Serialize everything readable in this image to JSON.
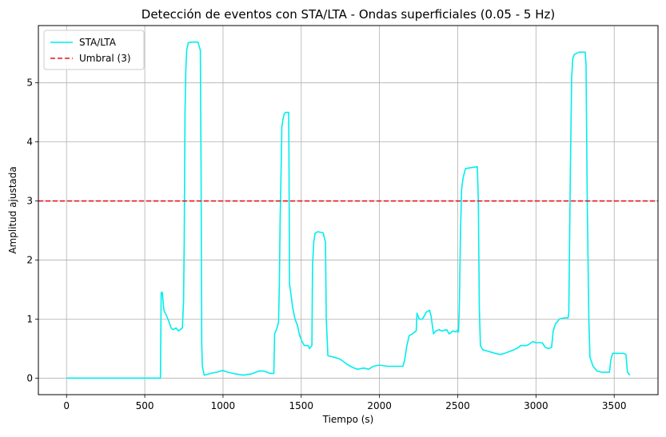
{
  "chart_data": {
    "type": "line",
    "title": "Detección de eventos con STA/LTA - Ondas superficiales (0.05 - 5 Hz)",
    "xlabel": "Tiempo (s)",
    "ylabel": "Amplitud ajustada",
    "xlim": [
      -180,
      3780
    ],
    "ylim": [
      -0.28,
      5.97
    ],
    "xticks": [
      0,
      500,
      1000,
      1500,
      2000,
      2500,
      3000,
      3500
    ],
    "yticks": [
      0,
      1,
      2,
      3,
      4,
      5
    ],
    "grid": true,
    "legend_position": "top-left",
    "series": [
      {
        "name": "STA/LTA",
        "color": "#00eeee",
        "style": "solid",
        "points": [
          [
            0,
            0.0
          ],
          [
            600,
            0.0
          ],
          [
            602,
            0.5
          ],
          [
            605,
            1.45
          ],
          [
            612,
            1.45
          ],
          [
            622,
            1.15
          ],
          [
            640,
            1.05
          ],
          [
            655,
            0.95
          ],
          [
            668,
            0.85
          ],
          [
            680,
            0.82
          ],
          [
            700,
            0.85
          ],
          [
            715,
            0.8
          ],
          [
            740,
            0.85
          ],
          [
            748,
            1.3
          ],
          [
            752,
            2.3
          ],
          [
            757,
            4.5
          ],
          [
            762,
            5.2
          ],
          [
            768,
            5.55
          ],
          [
            778,
            5.68
          ],
          [
            800,
            5.69
          ],
          [
            840,
            5.69
          ],
          [
            855,
            5.55
          ],
          [
            860,
            3.5
          ],
          [
            864,
            0.6
          ],
          [
            868,
            0.2
          ],
          [
            880,
            0.05
          ],
          [
            920,
            0.08
          ],
          [
            960,
            0.1
          ],
          [
            1000,
            0.13
          ],
          [
            1030,
            0.1
          ],
          [
            1080,
            0.07
          ],
          [
            1130,
            0.05
          ],
          [
            1180,
            0.07
          ],
          [
            1230,
            0.12
          ],
          [
            1260,
            0.12
          ],
          [
            1300,
            0.08
          ],
          [
            1325,
            0.08
          ],
          [
            1330,
            0.75
          ],
          [
            1345,
            0.85
          ],
          [
            1355,
            0.95
          ],
          [
            1360,
            1.6
          ],
          [
            1365,
            2.7
          ],
          [
            1370,
            3.3
          ],
          [
            1376,
            4.25
          ],
          [
            1383,
            4.38
          ],
          [
            1390,
            4.47
          ],
          [
            1400,
            4.5
          ],
          [
            1420,
            4.5
          ],
          [
            1422,
            3.5
          ],
          [
            1425,
            1.6
          ],
          [
            1435,
            1.4
          ],
          [
            1445,
            1.2
          ],
          [
            1460,
            1.0
          ],
          [
            1475,
            0.9
          ],
          [
            1490,
            0.72
          ],
          [
            1505,
            0.62
          ],
          [
            1520,
            0.55
          ],
          [
            1545,
            0.55
          ],
          [
            1552,
            0.5
          ],
          [
            1568,
            0.55
          ],
          [
            1572,
            1.9
          ],
          [
            1580,
            2.3
          ],
          [
            1588,
            2.45
          ],
          [
            1605,
            2.48
          ],
          [
            1640,
            2.46
          ],
          [
            1655,
            2.3
          ],
          [
            1660,
            1.0
          ],
          [
            1670,
            0.38
          ],
          [
            1700,
            0.36
          ],
          [
            1740,
            0.33
          ],
          [
            1760,
            0.3
          ],
          [
            1800,
            0.22
          ],
          [
            1830,
            0.18
          ],
          [
            1860,
            0.15
          ],
          [
            1900,
            0.17
          ],
          [
            1930,
            0.15
          ],
          [
            1960,
            0.2
          ],
          [
            2000,
            0.22
          ],
          [
            2050,
            0.2
          ],
          [
            2100,
            0.2
          ],
          [
            2150,
            0.2
          ],
          [
            2160,
            0.3
          ],
          [
            2175,
            0.55
          ],
          [
            2190,
            0.72
          ],
          [
            2210,
            0.75
          ],
          [
            2235,
            0.8
          ],
          [
            2240,
            1.1
          ],
          [
            2255,
            1.0
          ],
          [
            2275,
            1.0
          ],
          [
            2300,
            1.12
          ],
          [
            2320,
            1.15
          ],
          [
            2330,
            1.05
          ],
          [
            2340,
            0.85
          ],
          [
            2345,
            0.75
          ],
          [
            2360,
            0.8
          ],
          [
            2380,
            0.82
          ],
          [
            2400,
            0.8
          ],
          [
            2430,
            0.82
          ],
          [
            2445,
            0.75
          ],
          [
            2470,
            0.8
          ],
          [
            2490,
            0.78
          ],
          [
            2500,
            0.82
          ],
          [
            2505,
            0.78
          ],
          [
            2510,
            1.2
          ],
          [
            2518,
            2.5
          ],
          [
            2525,
            3.2
          ],
          [
            2535,
            3.4
          ],
          [
            2550,
            3.55
          ],
          [
            2600,
            3.57
          ],
          [
            2625,
            3.58
          ],
          [
            2632,
            3.0
          ],
          [
            2638,
            1.2
          ],
          [
            2645,
            0.55
          ],
          [
            2660,
            0.48
          ],
          [
            2700,
            0.45
          ],
          [
            2740,
            0.42
          ],
          [
            2770,
            0.4
          ],
          [
            2800,
            0.42
          ],
          [
            2830,
            0.45
          ],
          [
            2860,
            0.48
          ],
          [
            2890,
            0.52
          ],
          [
            2900,
            0.55
          ],
          [
            2920,
            0.55
          ],
          [
            2940,
            0.55
          ],
          [
            2960,
            0.58
          ],
          [
            2980,
            0.62
          ],
          [
            3000,
            0.6
          ],
          [
            3040,
            0.6
          ],
          [
            3060,
            0.52
          ],
          [
            3080,
            0.5
          ],
          [
            3100,
            0.52
          ],
          [
            3110,
            0.8
          ],
          [
            3125,
            0.92
          ],
          [
            3135,
            0.95
          ],
          [
            3150,
            1.0
          ],
          [
            3180,
            1.02
          ],
          [
            3205,
            1.02
          ],
          [
            3210,
            1.1
          ],
          [
            3220,
            3.5
          ],
          [
            3228,
            5.1
          ],
          [
            3236,
            5.42
          ],
          [
            3245,
            5.48
          ],
          [
            3275,
            5.52
          ],
          [
            3315,
            5.52
          ],
          [
            3320,
            5.3
          ],
          [
            3328,
            3.0
          ],
          [
            3338,
            1.0
          ],
          [
            3345,
            0.35
          ],
          [
            3365,
            0.2
          ],
          [
            3390,
            0.12
          ],
          [
            3420,
            0.1
          ],
          [
            3450,
            0.1
          ],
          [
            3470,
            0.1
          ],
          [
            3478,
            0.3
          ],
          [
            3490,
            0.42
          ],
          [
            3520,
            0.42
          ],
          [
            3560,
            0.42
          ],
          [
            3575,
            0.4
          ],
          [
            3585,
            0.1
          ],
          [
            3600,
            0.05
          ]
        ]
      },
      {
        "name": "Umbral (3)",
        "color": "#e8141a",
        "style": "dashed",
        "y": 3
      }
    ]
  }
}
